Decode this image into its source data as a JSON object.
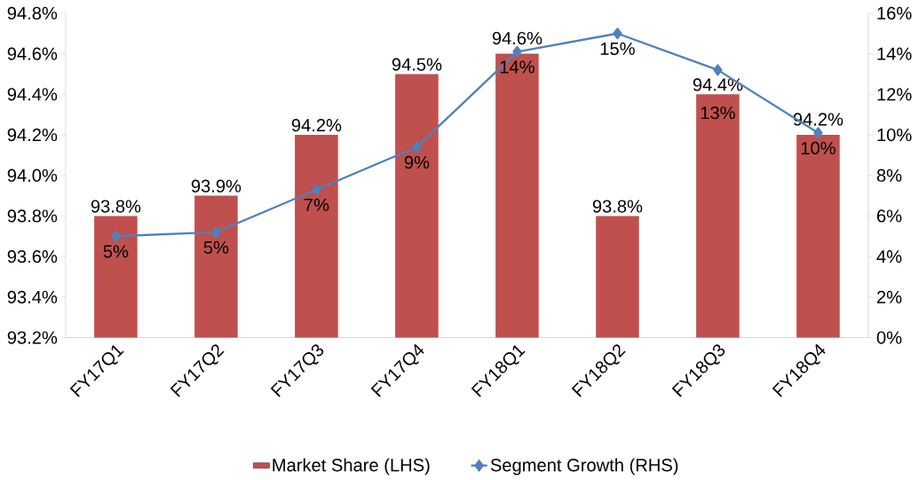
{
  "chart_data": {
    "type": "bar",
    "categories": [
      "FY17Q1",
      "FY17Q2",
      "FY17Q3",
      "FY17Q4",
      "FY18Q1",
      "FY18Q2",
      "FY18Q3",
      "FY18Q4"
    ],
    "series": [
      {
        "name": "Market Share (LHS)",
        "color": "#c0504d",
        "values": [
          93.8,
          93.9,
          94.2,
          94.5,
          94.6,
          93.8,
          94.4,
          94.2
        ],
        "value_labels": [
          "93.8%",
          "93.9%",
          "94.2%",
          "94.5%",
          "94.6%",
          "93.8%",
          "94.4%",
          "94.2%"
        ]
      },
      {
        "name": "Segment Growth (RHS)",
        "type": "line",
        "axis": "y2",
        "marker": "diamond",
        "color": "#4f81bd",
        "values": [
          5.0,
          5.2,
          7.3,
          9.4,
          14.1,
          15.0,
          13.2,
          10.1
        ],
        "value_labels": [
          "5%",
          "5%",
          "7%",
          "9%",
          "14%",
          "15%",
          "13%",
          "10%"
        ]
      }
    ],
    "ylim": [
      93.2,
      94.8
    ],
    "yticks": [
      {
        "value": 93.2,
        "label": "93.2%"
      },
      {
        "value": 93.4,
        "label": "93.4%"
      },
      {
        "value": 93.6,
        "label": "93.6%"
      },
      {
        "value": 93.8,
        "label": "93.8%"
      },
      {
        "value": 94.0,
        "label": "94.0%"
      },
      {
        "value": 94.2,
        "label": "94.2%"
      },
      {
        "value": 94.4,
        "label": "94.4%"
      },
      {
        "value": 94.6,
        "label": "94.6%"
      },
      {
        "value": 94.8,
        "label": "94.8%"
      }
    ],
    "y2lim": [
      0,
      16
    ],
    "y2ticks": [
      {
        "value": 0,
        "label": "0%"
      },
      {
        "value": 2,
        "label": "2%"
      },
      {
        "value": 4,
        "label": "4%"
      },
      {
        "value": 6,
        "label": "6%"
      },
      {
        "value": 8,
        "label": "8%"
      },
      {
        "value": 10,
        "label": "10%"
      },
      {
        "value": 12,
        "label": "12%"
      },
      {
        "value": 14,
        "label": "14%"
      },
      {
        "value": 16,
        "label": "16%"
      }
    ],
    "legend": "bottom"
  }
}
